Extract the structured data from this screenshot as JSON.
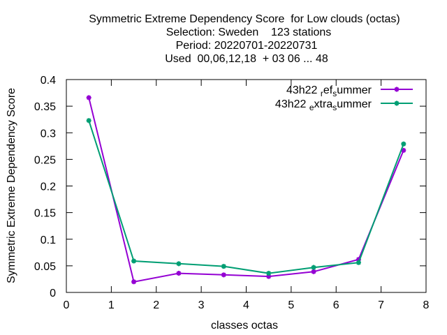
{
  "chart_data": {
    "type": "line",
    "title": [
      "Symmetric Extreme Dependency Score  for Low clouds (octas)",
      "Selection: Sweden    123 stations",
      "Period: 20220701-20220731",
      "Used  00,06,12,18  + 03 06 ... 48"
    ],
    "xlabel": "classes octas",
    "ylabel": "Symmetric Extreme Dependency Score",
    "xlim": [
      0,
      8
    ],
    "ylim": [
      0,
      0.4
    ],
    "xticks": [
      "0",
      "1",
      "2",
      "3",
      "4",
      "5",
      "6",
      "7",
      "8"
    ],
    "yticks": [
      "0",
      "0.05",
      "0.1",
      "0.15",
      "0.2",
      "0.25",
      "0.3",
      "0.35",
      "0.4"
    ],
    "legend_position": "top-right",
    "grid": false,
    "x": [
      0.5,
      1.5,
      2.5,
      3.5,
      4.5,
      5.5,
      6.5,
      7.5
    ],
    "series": [
      {
        "name": "43h22_ref_summer",
        "label_parts": [
          "43h22 ",
          "r",
          "ef",
          "s",
          "ummer"
        ],
        "color": "#9400d3",
        "values": [
          0.366,
          0.02,
          0.036,
          0.033,
          0.03,
          0.039,
          0.062,
          0.267
        ]
      },
      {
        "name": "43h22_extra_summer",
        "label_parts": [
          "43h22 ",
          "e",
          "xtra",
          "s",
          "ummer"
        ],
        "color": "#009e73",
        "values": [
          0.323,
          0.059,
          0.054,
          0.049,
          0.036,
          0.047,
          0.056,
          0.279
        ]
      }
    ]
  }
}
